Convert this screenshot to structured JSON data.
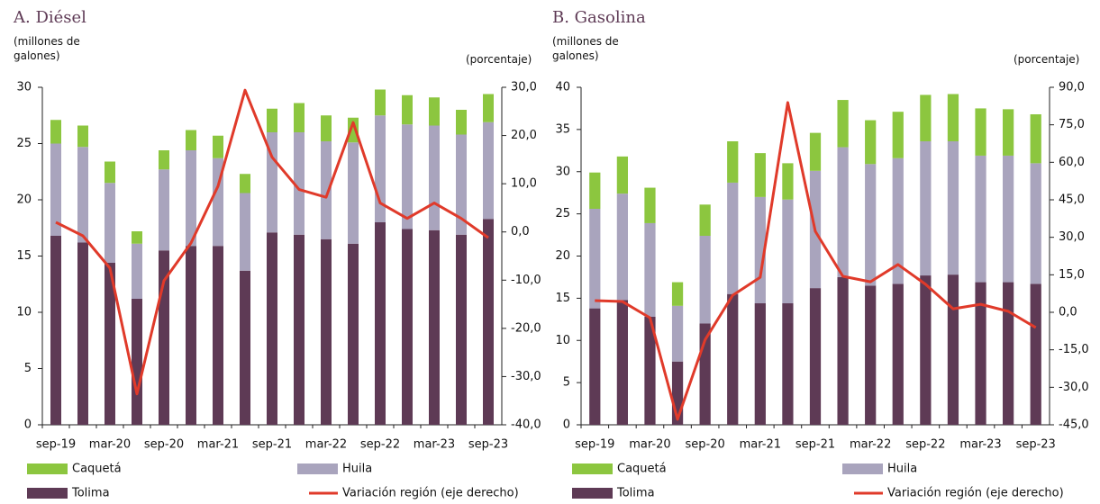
{
  "chart_data": [
    {
      "type": "bar",
      "stacked": true,
      "title": "A. Diésel",
      "y_label": "(millones de galones)",
      "y2_label": "(porcentaje)",
      "categories": [
        "sep-19",
        null,
        "mar-20",
        null,
        "sep-20",
        null,
        "mar-21",
        null,
        "sep-21",
        null,
        "mar-22",
        null,
        "sep-22",
        null,
        "mar-23",
        null,
        "sep-23"
      ],
      "series": [
        {
          "name": "Tolima",
          "color": "#5e3a55",
          "values": [
            16.8,
            16.2,
            14.4,
            11.2,
            15.5,
            15.9,
            15.9,
            13.7,
            17.1,
            16.9,
            16.5,
            16.1,
            18.0,
            17.4,
            17.3,
            16.9,
            18.3
          ]
        },
        {
          "name": "Huila",
          "color": "#a9a4bd",
          "values": [
            8.2,
            8.5,
            7.1,
            4.9,
            7.2,
            8.5,
            7.8,
            6.9,
            8.9,
            9.1,
            8.7,
            9.0,
            9.5,
            9.3,
            9.3,
            8.9,
            8.6
          ]
        },
        {
          "name": "Caquetá",
          "color": "#8cc63f",
          "values": [
            2.1,
            1.9,
            1.9,
            1.1,
            1.7,
            1.8,
            2.0,
            1.7,
            2.1,
            2.6,
            2.3,
            2.2,
            2.3,
            2.6,
            2.5,
            2.2,
            2.5
          ]
        },
        {
          "name": "Variación región (eje derecho)",
          "color": "#e03a2a",
          "type": "line",
          "axis": "y2",
          "values": [
            2.0,
            -0.8,
            -7.5,
            -33.6,
            -10.1,
            -2.3,
            9.5,
            29.4,
            15.5,
            8.8,
            7.2,
            22.7,
            6.0,
            2.8,
            6.0,
            2.8,
            -1.2
          ]
        }
      ],
      "ylim": [
        0,
        30
      ],
      "yticks": [
        0,
        5,
        10,
        15,
        20,
        25,
        30
      ],
      "y2lim": [
        -40,
        30
      ],
      "y2ticks": [
        {
          "value": -40,
          "label": "-40,0"
        },
        {
          "value": -30,
          "label": "-30,0"
        },
        {
          "value": -20,
          "label": "-20,0"
        },
        {
          "value": -10,
          "label": "-10,0"
        },
        {
          "value": 0,
          "label": "0,0"
        },
        {
          "value": 10,
          "label": "10,0"
        },
        {
          "value": 20,
          "label": "20,0"
        },
        {
          "value": 30,
          "label": "30,0"
        }
      ]
    },
    {
      "type": "bar",
      "stacked": true,
      "title": "B. Gasolina",
      "y_label": "(millones de galones)",
      "y2_label": "(porcentaje)",
      "categories": [
        "sep-19",
        null,
        "mar-20",
        null,
        "sep-20",
        null,
        "mar-21",
        null,
        "sep-21",
        null,
        "mar-22",
        null,
        "sep-22",
        null,
        "mar-23",
        null,
        "sep-23"
      ],
      "series": [
        {
          "name": "Tolima",
          "color": "#5e3a55",
          "values": [
            13.8,
            14.8,
            12.8,
            7.5,
            12.0,
            15.5,
            14.4,
            14.4,
            16.2,
            17.5,
            16.5,
            16.7,
            17.7,
            17.8,
            16.9,
            16.9,
            16.7
          ]
        },
        {
          "name": "Huila",
          "color": "#a9a4bd",
          "values": [
            11.8,
            12.6,
            11.1,
            6.6,
            10.4,
            13.2,
            12.6,
            12.3,
            13.9,
            15.4,
            14.4,
            14.9,
            15.9,
            15.8,
            15.0,
            15.0,
            14.3
          ]
        },
        {
          "name": "Caquetá",
          "color": "#8cc63f",
          "values": [
            4.3,
            4.4,
            4.2,
            2.8,
            3.7,
            4.9,
            5.2,
            4.3,
            4.5,
            5.6,
            5.2,
            5.5,
            5.5,
            5.6,
            5.6,
            5.5,
            5.8
          ]
        },
        {
          "name": "Variación región (eje derecho)",
          "color": "#e03a2a",
          "type": "line",
          "axis": "y2",
          "values": [
            4.7,
            4.3,
            -2.2,
            -42.8,
            -11.0,
            6.8,
            14.0,
            83.9,
            32.4,
            14.4,
            12.2,
            19.1,
            11.2,
            1.4,
            3.2,
            0.4,
            -6.1
          ]
        }
      ],
      "ylim": [
        0,
        40
      ],
      "yticks": [
        0,
        5,
        10,
        15,
        20,
        25,
        30,
        35,
        40
      ],
      "y2lim": [
        -45,
        90
      ],
      "y2ticks": [
        {
          "value": -45,
          "label": "-45,0"
        },
        {
          "value": -30,
          "label": "-30,0"
        },
        {
          "value": -15,
          "label": "-15,0"
        },
        {
          "value": 0,
          "label": "0,0"
        },
        {
          "value": 15,
          "label": "15,0"
        },
        {
          "value": 30,
          "label": "30,0"
        },
        {
          "value": 45,
          "label": "45,0"
        },
        {
          "value": 60,
          "label": "60,0"
        },
        {
          "value": 75,
          "label": "75,0"
        },
        {
          "value": 90,
          "label": "90,0"
        }
      ]
    }
  ]
}
